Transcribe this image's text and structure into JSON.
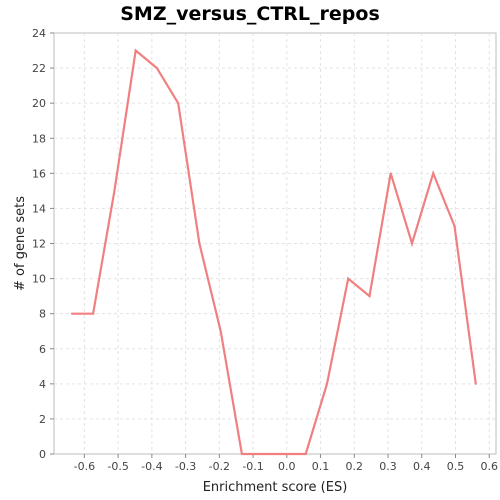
{
  "chart_data": {
    "type": "line",
    "title": "SMZ_versus_CTRL_repos",
    "xlabel": "Enrichment score (ES)",
    "ylabel": "# of gene sets",
    "xlim": [
      -0.69,
      0.62
    ],
    "ylim": [
      0,
      24
    ],
    "grid": true,
    "xticks": [
      -0.6,
      -0.5,
      -0.4,
      -0.3,
      -0.2,
      -0.1,
      0.0,
      0.1,
      0.2,
      0.3,
      0.4,
      0.5,
      0.6
    ],
    "xtick_labels": [
      "-0.6",
      "-0.5",
      "-0.4",
      "-0.3",
      "-0.2",
      "-0.1",
      "0.0",
      "0.1",
      "0.2",
      "0.3",
      "0.4",
      "0.5",
      "0.6"
    ],
    "yticks": [
      0,
      2,
      4,
      6,
      8,
      10,
      12,
      14,
      16,
      18,
      20,
      22,
      24
    ],
    "ytick_labels": [
      "0",
      "2",
      "4",
      "6",
      "8",
      "10",
      "12",
      "14",
      "16",
      "18",
      "20",
      "22",
      "24"
    ],
    "series": [
      {
        "color": "#f08080",
        "x": [
          -0.637,
          -0.574,
          -0.511,
          -0.448,
          -0.385,
          -0.322,
          -0.259,
          -0.196,
          -0.133,
          -0.07,
          -0.007,
          0.056,
          0.119,
          0.182,
          0.245,
          0.308,
          0.371,
          0.434,
          0.497,
          0.56
        ],
        "y": [
          8,
          8,
          15,
          23,
          22,
          20,
          12,
          7,
          0,
          0,
          0,
          0,
          4,
          10,
          9,
          16,
          12,
          16,
          13,
          4
        ]
      }
    ]
  }
}
